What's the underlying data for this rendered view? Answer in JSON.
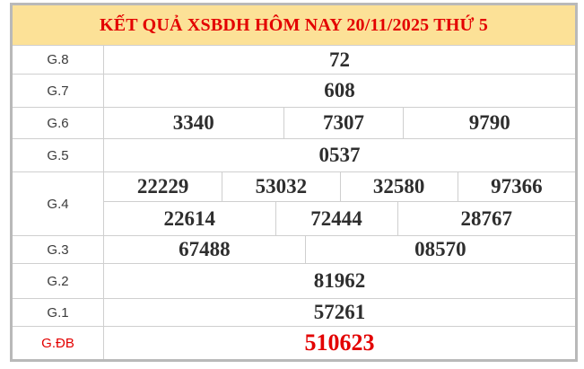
{
  "header": {
    "title": "KẾT QUẢ XSBDH HÔM NAY 20/11/2025 THỨ 5"
  },
  "colors": {
    "header_bg": "#fce197",
    "accent_red": "#e30000",
    "value_text": "#2e2e2e",
    "label_text": "#3a3a3a",
    "outer_border": "#b9b9b9",
    "inner_border": "#cfcfcf"
  },
  "results": {
    "g8": {
      "label": "G.8",
      "values": [
        "72"
      ]
    },
    "g7": {
      "label": "G.7",
      "values": [
        "608"
      ]
    },
    "g6": {
      "label": "G.6",
      "values": [
        "3340",
        "7307",
        "9790"
      ]
    },
    "g5": {
      "label": "G.5",
      "values": [
        "0537"
      ]
    },
    "g4": {
      "label": "G.4",
      "values_top": [
        "22229",
        "53032",
        "32580",
        "97366"
      ],
      "values_bottom": [
        "22614",
        "72444",
        "28767"
      ]
    },
    "g3": {
      "label": "G.3",
      "values": [
        "67488",
        "08570"
      ]
    },
    "g2": {
      "label": "G.2",
      "values": [
        "81962"
      ]
    },
    "g1": {
      "label": "G.1",
      "values": [
        "57261"
      ]
    },
    "gdb": {
      "label": "G.ĐB",
      "values": [
        "510623"
      ]
    }
  }
}
